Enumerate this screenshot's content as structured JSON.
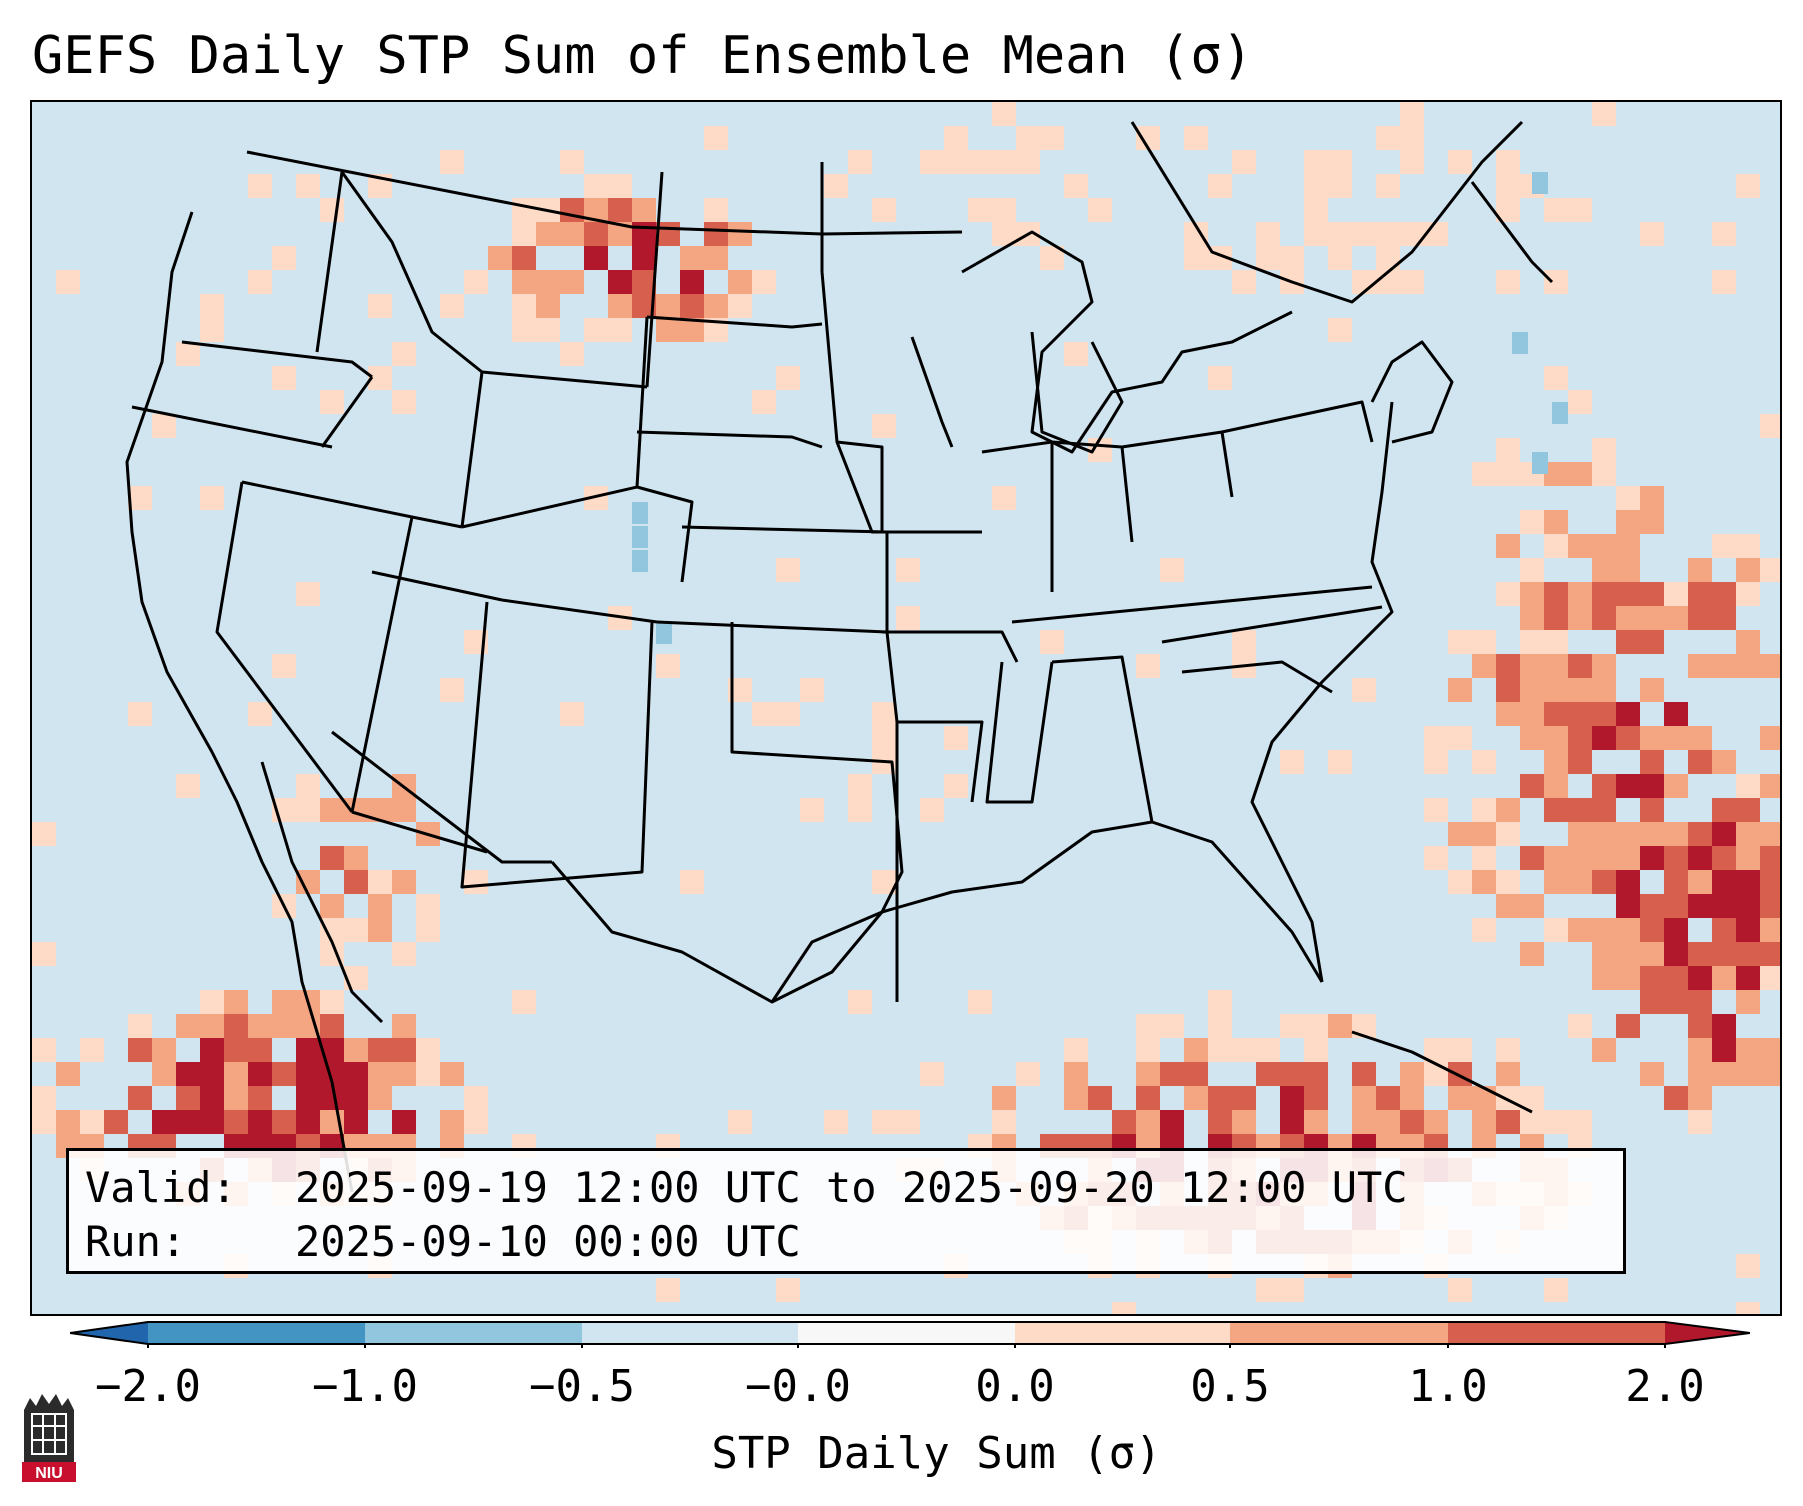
{
  "title": "GEFS Daily STP Sum of Ensemble Mean (σ)",
  "valid_label": "Valid:",
  "valid_value": "2025-09-19 12:00 UTC to 2025-09-20 12:00 UTC",
  "run_label": "Run:",
  "run_value": "2025-09-10 00:00 UTC",
  "colorbar": {
    "label": "STP Daily Sum (σ)",
    "tick_labels": [
      "−2.0",
      "−1.0",
      "−0.5",
      "−0.0",
      "0.0",
      "0.5",
      "1.0",
      "2.0"
    ],
    "colors": [
      "#2166ac",
      "#4393c3",
      "#92c5de",
      "#d1e5f0",
      "#f7f7f7",
      "#fddbc7",
      "#f4a582",
      "#d6604d",
      "#b2182b"
    ]
  },
  "logo": {
    "text": "NIU"
  },
  "map_colors": {
    "background": "#d1e5f0",
    "low_pos": "#fddbc7",
    "mid_pos": "#f4a582",
    "high_pos": "#d6604d",
    "very_high_pos": "#b2182b",
    "neg": "#92c5de"
  }
}
